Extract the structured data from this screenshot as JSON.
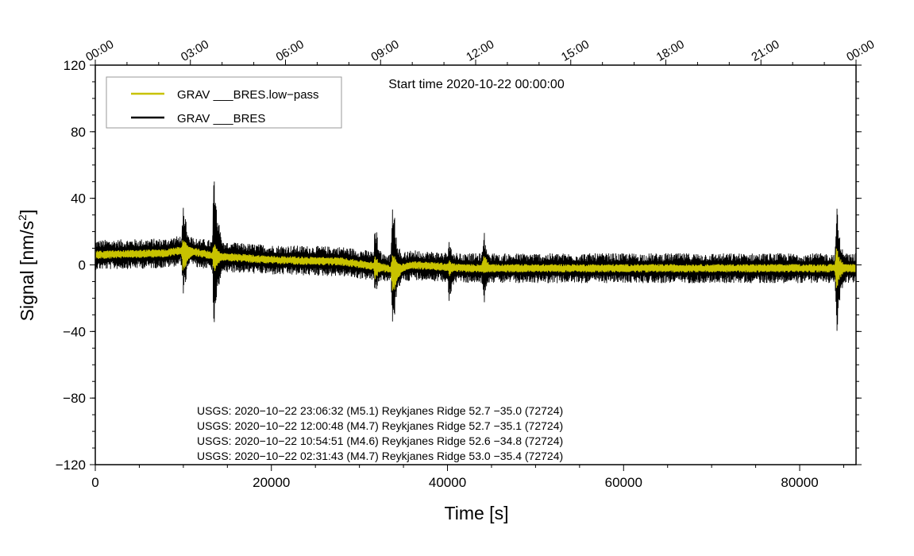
{
  "chart_data": {
    "type": "line",
    "start_label": "Start time 2020-10-22 00:00:00",
    "xlabel": "Time [s]",
    "ylabel_main": "Signal [nm/s",
    "ylabel_sup": "2",
    "ylabel_end": "]",
    "xlim": [
      0,
      86400
    ],
    "ylim": [
      -120,
      120
    ],
    "x_ticks": [
      {
        "value": 0,
        "label": "0"
      },
      {
        "value": 20000,
        "label": "20000"
      },
      {
        "value": 40000,
        "label": "40000"
      },
      {
        "value": 60000,
        "label": "60000"
      },
      {
        "value": 80000,
        "label": "80000"
      }
    ],
    "y_ticks": [
      {
        "value": -120,
        "label": "−120"
      },
      {
        "value": -80,
        "label": "−80"
      },
      {
        "value": -40,
        "label": "−40"
      },
      {
        "value": 0,
        "label": "0"
      },
      {
        "value": 40,
        "label": "40"
      },
      {
        "value": 80,
        "label": "80"
      },
      {
        "value": 120,
        "label": "120"
      }
    ],
    "top_ticks": [
      {
        "value": 0,
        "label": "00:00"
      },
      {
        "value": 10800,
        "label": "03:00"
      },
      {
        "value": 21600,
        "label": "06:00"
      },
      {
        "value": 32400,
        "label": "09:00"
      },
      {
        "value": 43200,
        "label": "12:00"
      },
      {
        "value": 54000,
        "label": "15:00"
      },
      {
        "value": 64800,
        "label": "18:00"
      },
      {
        "value": 75600,
        "label": "21:00"
      },
      {
        "value": 86400,
        "label": "00:00"
      }
    ],
    "grid": false,
    "legend_position": "top-left",
    "series": [
      {
        "name": "GRAV ___BRES.low−pass",
        "color": "#c8c200",
        "baseline": [
          [
            0,
            6
          ],
          [
            8000,
            7
          ],
          [
            10000,
            9
          ],
          [
            14000,
            5
          ],
          [
            20000,
            3
          ],
          [
            28000,
            2
          ],
          [
            32000,
            -1
          ],
          [
            34000,
            -3
          ],
          [
            36000,
            0
          ],
          [
            42000,
            -2
          ],
          [
            50000,
            -2
          ],
          [
            60000,
            -2
          ],
          [
            70000,
            -2
          ],
          [
            80000,
            -2
          ],
          [
            86400,
            -2
          ]
        ],
        "noise_amplitude": 2.5,
        "bursts": [
          {
            "x": 10000,
            "top": 17,
            "bottom": -8
          },
          {
            "x": 13500,
            "top": 14,
            "bottom": -6
          },
          {
            "x": 31800,
            "top": 6,
            "bottom": -10
          },
          {
            "x": 33800,
            "top": 10,
            "bottom": -22
          },
          {
            "x": 40200,
            "top": 3,
            "bottom": -7
          },
          {
            "x": 44100,
            "top": 8,
            "bottom": -6
          },
          {
            "x": 84200,
            "top": 12,
            "bottom": -16
          }
        ]
      },
      {
        "name": "GRAV ___BRES",
        "color": "#000000",
        "baseline": [
          [
            0,
            6
          ],
          [
            8000,
            7
          ],
          [
            10000,
            9
          ],
          [
            14000,
            5
          ],
          [
            20000,
            3
          ],
          [
            28000,
            2
          ],
          [
            32000,
            -1
          ],
          [
            34000,
            -3
          ],
          [
            36000,
            0
          ],
          [
            42000,
            -2
          ],
          [
            50000,
            -2
          ],
          [
            60000,
            -2
          ],
          [
            70000,
            -2
          ],
          [
            80000,
            -2
          ],
          [
            86400,
            -2
          ]
        ],
        "noise_amplitude": 9,
        "bursts": [
          {
            "x": 10000,
            "top": 39,
            "bottom": -22
          },
          {
            "x": 13500,
            "top": 62,
            "bottom": -45
          },
          {
            "x": 31800,
            "top": 28,
            "bottom": -20
          },
          {
            "x": 33800,
            "top": 46,
            "bottom": -45
          },
          {
            "x": 40200,
            "top": 17,
            "bottom": -26
          },
          {
            "x": 44100,
            "top": 25,
            "bottom": -28
          },
          {
            "x": 84200,
            "top": 37,
            "bottom": -43
          }
        ]
      }
    ],
    "annotations": [
      "USGS: 2020−10−22 23:06:32 (M5.1) Reykjanes Ridge 52.7 −35.0 (72724)",
      "USGS: 2020−10−22 12:00:48 (M4.7) Reykjanes Ridge 52.7 −35.1 (72724)",
      "USGS: 2020−10−22 10:54:51 (M4.6) Reykjanes Ridge 52.6 −34.8 (72724)",
      "USGS: 2020−10−22 02:31:43 (M4.7) Reykjanes Ridge 53.0 −35.4 (72724)"
    ]
  }
}
